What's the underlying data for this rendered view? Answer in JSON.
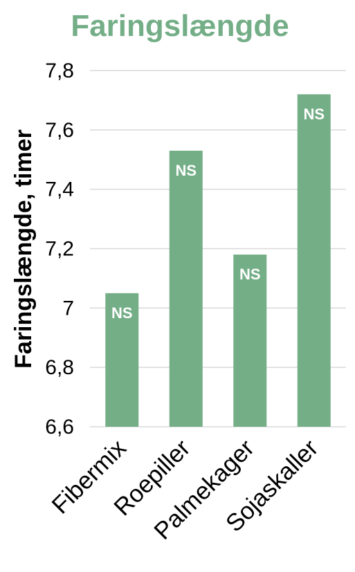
{
  "chart_data": {
    "type": "bar",
    "title": "Faringslængde",
    "xlabel": "",
    "ylabel": "Faringslængde, timer",
    "categories": [
      "Fibermix",
      "Roepiller",
      "Palmekager",
      "Sojaskaller"
    ],
    "values": [
      7.05,
      7.53,
      7.18,
      7.72
    ],
    "data_labels": [
      "NS",
      "NS",
      "NS",
      "NS"
    ],
    "ylim": [
      6.6,
      7.8
    ],
    "yticks": [
      6.6,
      6.8,
      7.0,
      7.2,
      7.4,
      7.6,
      7.8
    ],
    "ytick_labels": [
      "6,6",
      "6,8",
      "7",
      "7,2",
      "7,4",
      "7,6",
      "7,8"
    ],
    "grid": true,
    "legend": "none",
    "colors": {
      "bar": "#74ae87",
      "title": "#74ae87",
      "grid": "#d9d9d9",
      "data_label": "#ffffff"
    }
  }
}
